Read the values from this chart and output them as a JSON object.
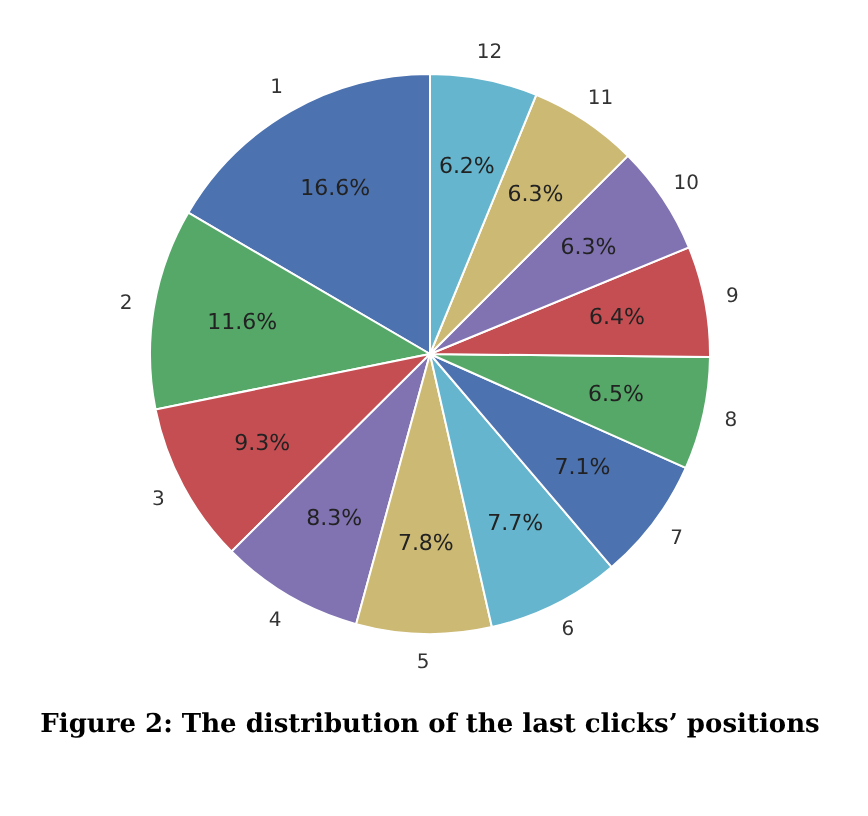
{
  "chart_data": {
    "type": "pie",
    "categories": [
      "1",
      "2",
      "3",
      "4",
      "5",
      "6",
      "7",
      "8",
      "9",
      "10",
      "11",
      "12"
    ],
    "values": [
      16.6,
      11.6,
      9.3,
      8.3,
      7.8,
      7.7,
      7.1,
      6.5,
      6.4,
      6.3,
      6.3,
      6.2
    ],
    "value_labels": [
      "16.6%",
      "11.6%",
      "9.3%",
      "8.3%",
      "7.8%",
      "7.7%",
      "7.1%",
      "6.5%",
      "6.4%",
      "6.3%",
      "6.3%",
      "6.2%"
    ],
    "colors": [
      "#4c72b0",
      "#55a868",
      "#c44e52",
      "#8172b2",
      "#ccb974",
      "#64b5cd",
      "#4c72b0",
      "#55a868",
      "#c44e52",
      "#8172b2",
      "#ccb974",
      "#64b5cd"
    ],
    "annotations": [
      "Figure 2: The distribution of the last clicks’ positions"
    ]
  }
}
